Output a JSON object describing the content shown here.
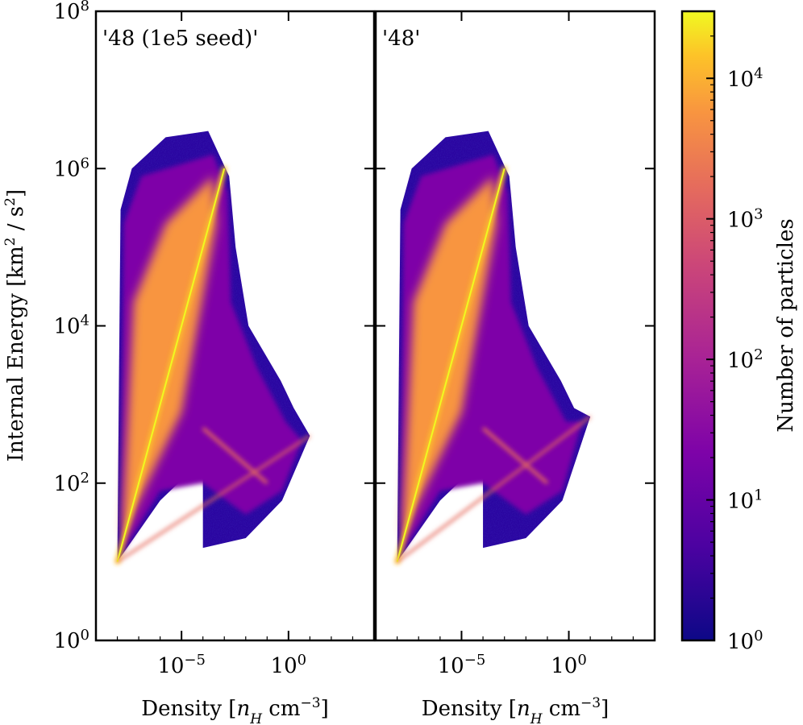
{
  "chart_data": [
    {
      "type": "heatmap",
      "title": "'48 (1e5 seed)'",
      "xlabel": "Density [n_H cm^-3]",
      "ylabel": "Internal Energy [km^2 / s^2]",
      "xscale": "log",
      "yscale": "log",
      "xlim": [
        1e-09,
        10000.0
      ],
      "ylim": [
        1,
        100000000.0
      ],
      "x_ticks": [
        {
          "value": 1e-05,
          "base": "10",
          "exp": "−5"
        },
        {
          "value": 1,
          "base": "10",
          "exp": "0"
        }
      ],
      "y_ticks": [
        {
          "value": 1,
          "base": "10",
          "exp": "0"
        },
        {
          "value": 100,
          "base": "10",
          "exp": "2"
        },
        {
          "value": 10000,
          "base": "10",
          "exp": "4"
        },
        {
          "value": 1000000,
          "base": "10",
          "exp": "6"
        },
        {
          "value": 100000000,
          "base": "10",
          "exp": "8"
        }
      ],
      "features": [
        {
          "name": "adiabatic ridge",
          "x": [
            1e-08,
            0.001
          ],
          "y": [
            10,
            1000000.0
          ]
        },
        {
          "name": "cooling track",
          "x": [
            0.0001,
            0.1
          ],
          "y": [
            500,
            100
          ]
        },
        {
          "name": "lower boundary",
          "x": [
            1e-08,
            10
          ],
          "y": [
            10,
            400
          ]
        }
      ],
      "particle_count_range": [
        1,
        30000
      ]
    },
    {
      "type": "heatmap",
      "title": "'48'",
      "xlabel": "Density [n_H cm^-3]",
      "xscale": "log",
      "yscale": "log",
      "xlim": [
        1e-09,
        10000.0
      ],
      "ylim": [
        1,
        100000000.0
      ],
      "x_ticks": [
        {
          "value": 1e-05,
          "base": "10",
          "exp": "−5"
        },
        {
          "value": 1,
          "base": "10",
          "exp": "0"
        }
      ],
      "features": [
        {
          "name": "adiabatic ridge",
          "x": [
            1e-08,
            0.001
          ],
          "y": [
            10,
            1000000.0
          ]
        },
        {
          "name": "cooling track",
          "x": [
            0.0001,
            0.1
          ],
          "y": [
            500,
            100
          ]
        },
        {
          "name": "lower boundary",
          "x": [
            1e-08,
            10
          ],
          "y": [
            10,
            700
          ]
        }
      ],
      "particle_count_range": [
        1,
        30000
      ]
    }
  ],
  "colorbar": {
    "label": "Number of particles",
    "scale": "log",
    "colormap": "plasma",
    "range": [
      1,
      30000
    ],
    "ticks": [
      {
        "value": 1,
        "base": "10",
        "exp": "0"
      },
      {
        "value": 10,
        "base": "10",
        "exp": "1"
      },
      {
        "value": 100,
        "base": "10",
        "exp": "2"
      },
      {
        "value": 1000,
        "base": "10",
        "exp": "3"
      },
      {
        "value": 10000,
        "base": "10",
        "exp": "4"
      }
    ]
  },
  "colors": {
    "plasma_dark": "#0d0887",
    "plasma_purple": "#7e03a8",
    "plasma_magenta": "#cc4778",
    "plasma_orange": "#f89540",
    "plasma_yellow": "#f0f921"
  }
}
